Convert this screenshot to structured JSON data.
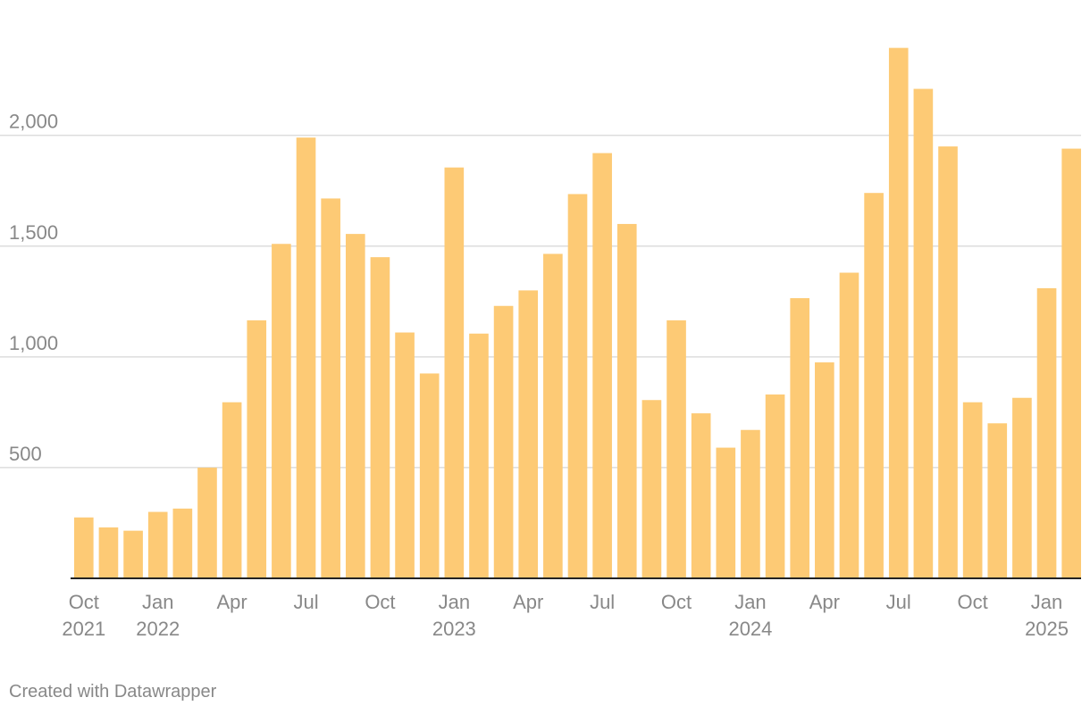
{
  "chart_data": {
    "type": "bar",
    "title": "",
    "xlabel": "",
    "ylabel": "",
    "ylim": [
      0,
      2450
    ],
    "y_ticks": [
      {
        "value": 500,
        "label": "500"
      },
      {
        "value": 1000,
        "label": "1,000"
      },
      {
        "value": 1500,
        "label": "1,500"
      },
      {
        "value": 2000,
        "label": "2,000"
      }
    ],
    "grid": true,
    "bar_color": "#fdca75",
    "categories": [
      "2021-10",
      "2021-11",
      "2021-12",
      "2022-01",
      "2022-02",
      "2022-03",
      "2022-04",
      "2022-05",
      "2022-06",
      "2022-07",
      "2022-08",
      "2022-09",
      "2022-10",
      "2022-11",
      "2022-12",
      "2023-01",
      "2023-02",
      "2023-03",
      "2023-04",
      "2023-05",
      "2023-06",
      "2023-07",
      "2023-08",
      "2023-09",
      "2023-10",
      "2023-11",
      "2023-12",
      "2024-01",
      "2024-02",
      "2024-03",
      "2024-04",
      "2024-05",
      "2024-06",
      "2024-07",
      "2024-08",
      "2024-09",
      "2024-10",
      "2024-11",
      "2024-12",
      "2025-01",
      "2025-02"
    ],
    "values": [
      275,
      230,
      215,
      300,
      315,
      500,
      795,
      1165,
      1510,
      1990,
      1715,
      1555,
      1450,
      1110,
      925,
      1855,
      1105,
      1230,
      1300,
      1465,
      1735,
      1920,
      1600,
      805,
      1165,
      745,
      590,
      670,
      830,
      1265,
      975,
      1380,
      1740,
      2395,
      2210,
      1950,
      795,
      700,
      815,
      1310,
      1940
    ],
    "x_tick_labels": [
      {
        "category": "2021-10",
        "lines": [
          "Oct",
          "2021"
        ]
      },
      {
        "category": "2022-01",
        "lines": [
          "Jan",
          "2022"
        ]
      },
      {
        "category": "2022-04",
        "lines": [
          "Apr"
        ]
      },
      {
        "category": "2022-07",
        "lines": [
          "Jul"
        ]
      },
      {
        "category": "2022-10",
        "lines": [
          "Oct"
        ]
      },
      {
        "category": "2023-01",
        "lines": [
          "Jan",
          "2023"
        ]
      },
      {
        "category": "2023-04",
        "lines": [
          "Apr"
        ]
      },
      {
        "category": "2023-07",
        "lines": [
          "Jul"
        ]
      },
      {
        "category": "2023-10",
        "lines": [
          "Oct"
        ]
      },
      {
        "category": "2024-01",
        "lines": [
          "Jan",
          "2024"
        ]
      },
      {
        "category": "2024-04",
        "lines": [
          "Apr"
        ]
      },
      {
        "category": "2024-07",
        "lines": [
          "Jul"
        ]
      },
      {
        "category": "2024-10",
        "lines": [
          "Oct"
        ]
      },
      {
        "category": "2025-01",
        "lines": [
          "Jan",
          "2025"
        ]
      }
    ]
  },
  "credit": "Created with Datawrapper"
}
